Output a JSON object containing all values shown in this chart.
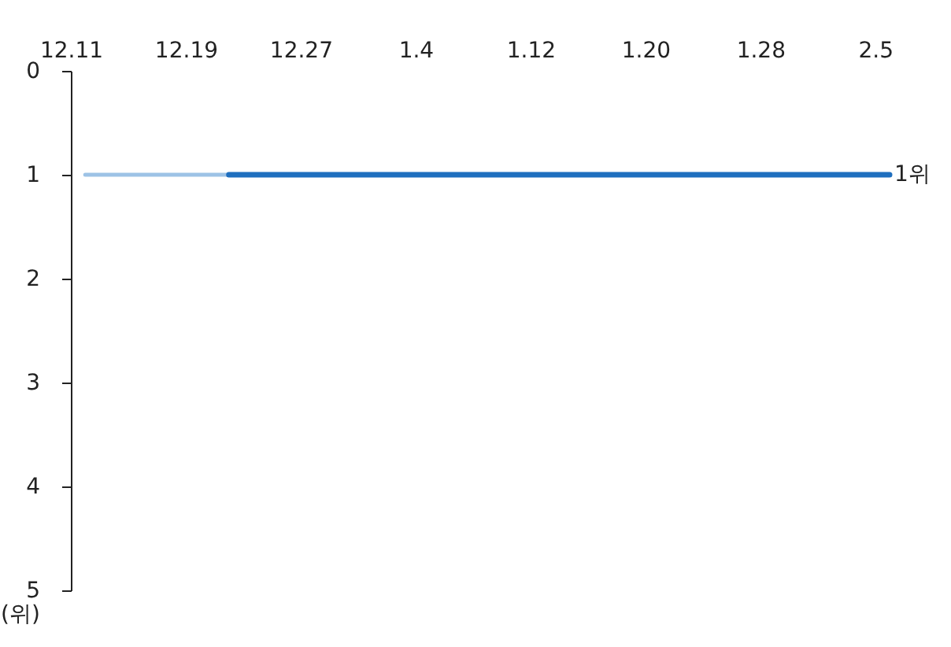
{
  "chart_data": {
    "type": "line",
    "ylabel": "(위)",
    "categories": [
      "12.11",
      null,
      null,
      null,
      null,
      null,
      null,
      null,
      "12.19",
      null,
      null,
      null,
      null,
      null,
      null,
      null,
      "12.27",
      null,
      null,
      null,
      null,
      null,
      null,
      null,
      "1.4",
      null,
      null,
      null,
      null,
      null,
      null,
      null,
      "1.12",
      null,
      null,
      null,
      null,
      null,
      null,
      null,
      "1.20",
      null,
      null,
      null,
      null,
      null,
      null,
      null,
      "1.28",
      null,
      null,
      null,
      null,
      null,
      null,
      null,
      "2.5",
      null
    ],
    "series": [
      {
        "color": "#9dc3e6",
        "values": [
          null,
          1,
          1,
          1,
          1,
          1,
          1,
          1,
          1,
          1,
          1,
          1,
          null,
          null,
          null,
          null,
          null,
          null,
          null,
          null,
          null,
          null,
          null,
          null,
          null,
          null,
          null,
          null,
          null,
          null,
          null,
          null,
          null,
          null,
          null,
          null,
          null,
          null,
          null,
          null,
          null,
          null,
          null,
          null,
          null,
          null,
          null,
          null,
          null,
          null,
          null,
          null,
          null,
          null,
          null,
          null,
          null,
          null
        ]
      },
      {
        "color": "#1f6fbf",
        "values": [
          null,
          null,
          null,
          null,
          null,
          null,
          null,
          null,
          null,
          null,
          null,
          1,
          1,
          1,
          1,
          1,
          1,
          1,
          1,
          1,
          1,
          1,
          1,
          1,
          1,
          1,
          1,
          1,
          1,
          1,
          1,
          1,
          1,
          1,
          1,
          1,
          1,
          1,
          1,
          1,
          1,
          1,
          1,
          1,
          1,
          1,
          1,
          1,
          1,
          1,
          1,
          1,
          1,
          1,
          1,
          1,
          1,
          1
        ]
      }
    ],
    "ylim": [
      5,
      0
    ],
    "yticks": [
      0,
      1,
      2,
      3,
      4,
      5
    ],
    "annotations": [
      "1위"
    ],
    "grid": false,
    "marker": "none",
    "line_style": "solid"
  }
}
